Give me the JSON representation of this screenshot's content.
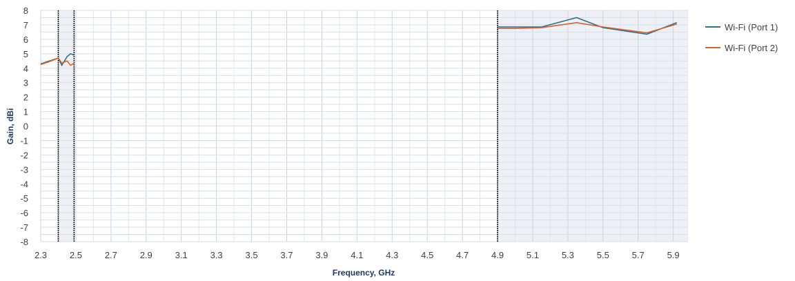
{
  "chart_data": {
    "type": "line",
    "title": "",
    "xlabel": "Frequency, GHz",
    "ylabel": "Gain, dBi",
    "xlim": [
      2.3,
      5.98
    ],
    "ylim": [
      -8,
      8
    ],
    "x_ticks": [
      "2.3",
      "2.5",
      "2.7",
      "2.9",
      "3.1",
      "3.3",
      "3.5",
      "3.7",
      "3.9",
      "4.1",
      "4.3",
      "4.5",
      "4.7",
      "4.9",
      "5.1",
      "5.3",
      "5.5",
      "5.7",
      "5.9"
    ],
    "y_ticks": [
      "8",
      "7",
      "6",
      "5",
      "4",
      "3",
      "2",
      "1",
      "0",
      "-1",
      "-2",
      "-3",
      "-4",
      "-5",
      "-6",
      "-7",
      "-8"
    ],
    "grid": true,
    "legend_position": "right",
    "shaded_bands": [
      [
        2.4,
        2.49
      ],
      [
        4.9,
        5.98
      ]
    ],
    "series": [
      {
        "name": "Wi-Fi (Port 1)",
        "color": "#2e6e8e",
        "segments": [
          [
            [
              2.3,
              4.3
            ],
            [
              2.35,
              4.5
            ],
            [
              2.4,
              4.7
            ],
            [
              2.42,
              4.2
            ],
            [
              2.45,
              4.8
            ],
            [
              2.47,
              5.0
            ],
            [
              2.49,
              4.9
            ]
          ],
          [
            [
              4.9,
              6.85
            ],
            [
              5.0,
              6.85
            ],
            [
              5.15,
              6.85
            ],
            [
              5.35,
              7.5
            ],
            [
              5.5,
              6.8
            ],
            [
              5.75,
              6.35
            ],
            [
              5.92,
              7.15
            ]
          ]
        ]
      },
      {
        "name": "Wi-Fi (Port 2)",
        "color": "#d8622a",
        "segments": [
          [
            [
              2.3,
              4.25
            ],
            [
              2.35,
              4.45
            ],
            [
              2.4,
              4.7
            ],
            [
              2.42,
              4.35
            ],
            [
              2.45,
              4.5
            ],
            [
              2.47,
              4.2
            ],
            [
              2.49,
              4.35
            ]
          ],
          [
            [
              4.9,
              6.75
            ],
            [
              5.0,
              6.75
            ],
            [
              5.15,
              6.8
            ],
            [
              5.35,
              7.15
            ],
            [
              5.5,
              6.85
            ],
            [
              5.75,
              6.45
            ],
            [
              5.92,
              7.05
            ]
          ]
        ]
      }
    ]
  }
}
